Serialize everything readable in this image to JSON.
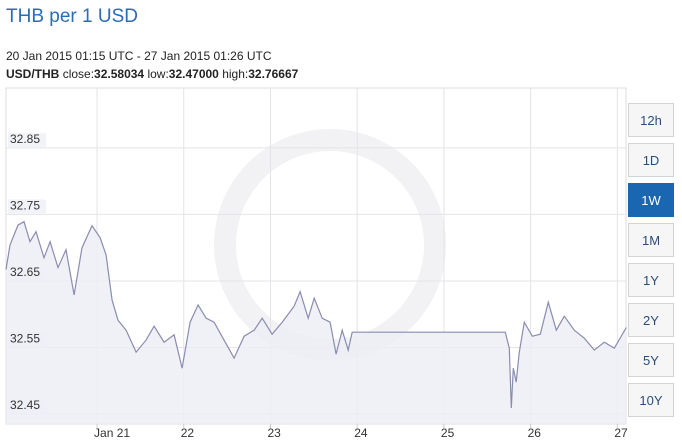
{
  "chart_data": {
    "type": "line",
    "title": "THB per 1 USD",
    "subtitle": "20 Jan 2015 01:15 UTC - 27 Jan 2015 01:26 UTC",
    "pair": "USD/THB",
    "stats": {
      "labels": [
        "close:",
        "low:",
        "high:"
      ],
      "values": [
        32.58034,
        32.47,
        32.76667
      ],
      "value_labels": [
        "32.58034",
        "32.47000",
        "32.76667"
      ]
    },
    "x": [
      19.95,
      19.996,
      20.088,
      20.158,
      20.227,
      20.296,
      20.388,
      20.458,
      20.55,
      20.642,
      20.735,
      20.827,
      20.942,
      21.035,
      21.104,
      21.173,
      21.242,
      21.335,
      21.45,
      21.565,
      21.658,
      21.773,
      21.888,
      21.981,
      22.073,
      22.165,
      22.258,
      22.35,
      22.465,
      22.581,
      22.696,
      22.812,
      22.904,
      23.019,
      23.135,
      23.273,
      23.342,
      23.435,
      23.504,
      23.596,
      23.688,
      23.757,
      23.827,
      23.896,
      23.942,
      25.708,
      25.754,
      25.777,
      25.8,
      25.834,
      25.869,
      25.927,
      26.019,
      26.112,
      26.204,
      26.296,
      26.388,
      26.504,
      26.619,
      26.735,
      26.85,
      26.965,
      27.104
    ],
    "values": [
      32.667,
      32.704,
      32.734,
      32.739,
      32.709,
      32.724,
      32.685,
      32.709,
      32.67,
      32.697,
      32.629,
      32.7,
      32.733,
      32.715,
      32.689,
      32.621,
      32.591,
      32.576,
      32.543,
      32.561,
      32.582,
      32.558,
      32.569,
      32.519,
      32.588,
      32.614,
      32.594,
      32.588,
      32.561,
      32.534,
      32.567,
      32.576,
      32.594,
      32.57,
      32.588,
      32.612,
      32.634,
      32.594,
      32.624,
      32.594,
      32.588,
      32.54,
      32.576,
      32.546,
      32.573,
      32.573,
      32.549,
      32.459,
      32.519,
      32.498,
      32.543,
      32.588,
      32.567,
      32.57,
      32.618,
      32.576,
      32.597,
      32.576,
      32.564,
      32.546,
      32.558,
      32.549,
      32.58
    ],
    "color": "#8a8cb0",
    "fill_color": "#eceef5",
    "xlim": [
      19.95,
      27.1
    ],
    "xticks": [
      {
        "value": 21,
        "label": "Jan 21"
      },
      22,
      23,
      24,
      25,
      26,
      27
    ],
    "ylim": [
      32.435,
      32.94
    ],
    "yticks": [
      32.45,
      32.55,
      32.65,
      32.75,
      32.85
    ],
    "grid": true
  },
  "range_buttons": [
    "12h",
    "1D",
    "1W",
    "1M",
    "1Y",
    "2Y",
    "5Y",
    "10Y"
  ],
  "active_range": "1W"
}
